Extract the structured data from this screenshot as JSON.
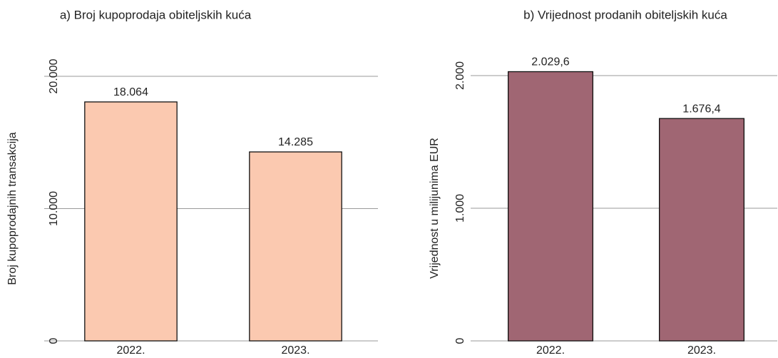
{
  "chart_data": [
    {
      "type": "bar",
      "title": "a) Broj kupoprodaja obiteljskih kuća",
      "y_label": "Broj kupoprodajnih transakcija",
      "categories": [
        "2022.",
        "2023."
      ],
      "values": [
        18064,
        14285
      ],
      "value_labels": [
        "18.064",
        "14.285"
      ],
      "color": "#fbc9b0",
      "ylim": [
        0,
        20000
      ],
      "yticks": [
        0,
        {
          "value": 10000,
          "label": "10.000"
        },
        {
          "value": 20000,
          "label": "20.000"
        }
      ],
      "grid": true
    },
    {
      "type": "bar",
      "title": "b) Vrijednost prodanih obiteljskih kuća",
      "y_label": "Vrijednost u milijunima EUR",
      "categories": [
        "2022.",
        "2023."
      ],
      "values": [
        2029.6,
        1676.4
      ],
      "value_labels": [
        "2.029,6",
        "1.676,4"
      ],
      "color": "#a06673",
      "ylim": [
        0,
        2000
      ],
      "yticks": [
        0,
        {
          "value": 1000,
          "label": "1.000"
        },
        {
          "value": 2000,
          "label": "2.000"
        }
      ],
      "grid": true
    }
  ]
}
